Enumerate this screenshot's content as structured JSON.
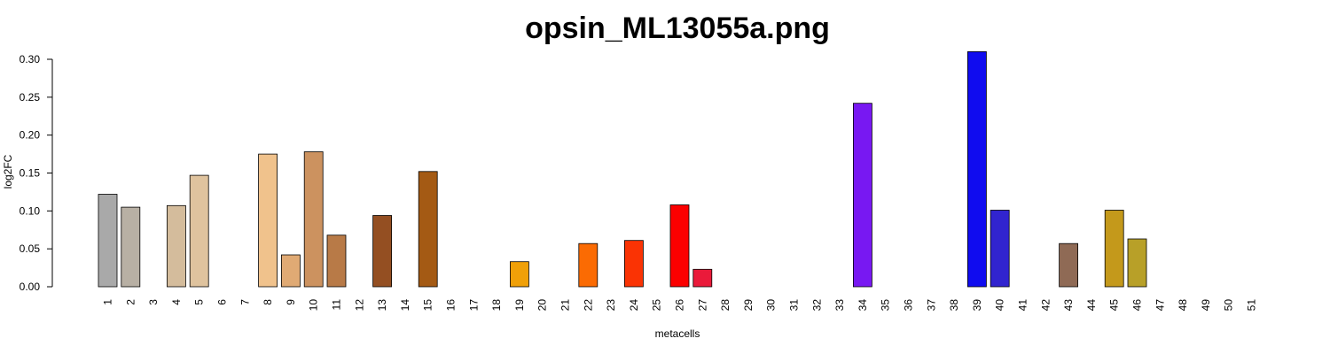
{
  "chart_data": {
    "type": "bar",
    "title": "opsin_ML13055a.png",
    "xlabel": "metacells",
    "ylabel": "log2FC",
    "ylim": [
      0,
      0.3
    ],
    "yticks": [
      "0.00",
      "0.05",
      "0.10",
      "0.15",
      "0.20",
      "0.25",
      "0.30"
    ],
    "grid": false,
    "legend": "none",
    "categories": [
      "1",
      "2",
      "3",
      "4",
      "5",
      "6",
      "7",
      "8",
      "9",
      "10",
      "11",
      "12",
      "13",
      "14",
      "15",
      "16",
      "17",
      "18",
      "19",
      "20",
      "21",
      "22",
      "23",
      "24",
      "25",
      "26",
      "27",
      "28",
      "29",
      "30",
      "31",
      "32",
      "33",
      "34",
      "35",
      "36",
      "37",
      "38",
      "39",
      "40",
      "41",
      "42",
      "43",
      "44",
      "45",
      "46",
      "47",
      "48",
      "49",
      "50",
      "51"
    ],
    "values": [
      0.122,
      0.105,
      0,
      0.107,
      0.147,
      0,
      0,
      0.175,
      0.042,
      0.178,
      0.068,
      0,
      0.094,
      0,
      0.152,
      0,
      0,
      0,
      0.033,
      0,
      0,
      0.057,
      0,
      0.061,
      0,
      0.108,
      0.023,
      0,
      0,
      0,
      0,
      0,
      0,
      0.242,
      0,
      0,
      0,
      0,
      0.31,
      0.101,
      0,
      0,
      0.057,
      0,
      0.101,
      0.063,
      0,
      0,
      0,
      0,
      0
    ],
    "colors": [
      "#a9a9a9",
      "#b8b0a4",
      "#c9b9a0",
      "#d4bc9c",
      "#dfc39e",
      "#e6c9a0",
      "#ecc493",
      "#f0c28c",
      "#e0aa74",
      "#cc925f",
      "#b87a47",
      "#a66a3c",
      "#944f22",
      "#a05a1e",
      "#a45a14",
      "#b86a10",
      "#cc7a0c",
      "#e08a08",
      "#f0a008",
      "#f69a06",
      "#f88504",
      "#fb6b03",
      "#fb5003",
      "#fa3304",
      "#fa1a04",
      "#fb0000",
      "#ea1a3a",
      "#d81c6a",
      "#c418a0",
      "#ac16c8",
      "#9616e4",
      "#8618ee",
      "#7a18f0",
      "#7818f2",
      "#5a12f2",
      "#4210f0",
      "#2a0cf0",
      "#1a0af0",
      "#100cef",
      "#3124cf",
      "#4a3cae",
      "#6a4f8a",
      "#8f6a55",
      "#a07a40",
      "#c4991b",
      "#b8a028",
      "#a4a83b",
      "#98a548",
      "#8aa050",
      "#7e9c58",
      "#729860"
    ]
  }
}
